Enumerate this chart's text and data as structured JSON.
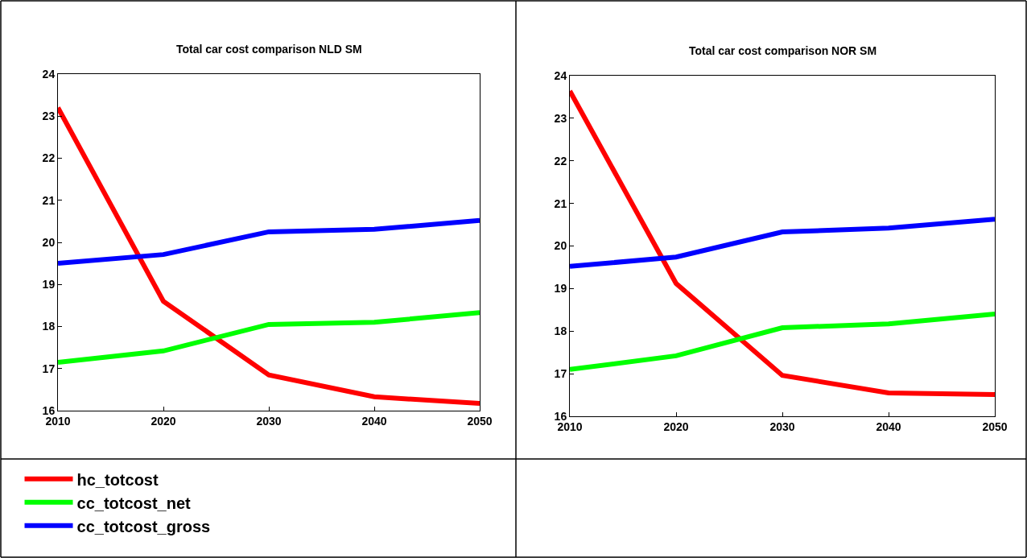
{
  "chart_data": [
    {
      "type": "line",
      "title": "Total car cost comparison NLD SM",
      "x": [
        2010,
        2020,
        2030,
        2040,
        2050
      ],
      "xlim": [
        2010,
        2050
      ],
      "xticks": [
        2010,
        2020,
        2030,
        2040,
        2050
      ],
      "ylim": [
        16,
        24
      ],
      "yticks": [
        16,
        17,
        18,
        19,
        20,
        21,
        22,
        23,
        24
      ],
      "legend": "bottom left",
      "marker": "none",
      "line_style": "solid",
      "series": [
        {
          "name": "hc_totcost",
          "color": "#ff0000",
          "values": [
            23.2,
            18.6,
            16.85,
            16.33,
            16.17
          ]
        },
        {
          "name": "cc_totcost_net",
          "color": "#00ff00",
          "values": [
            17.15,
            17.42,
            18.05,
            18.1,
            18.33
          ]
        },
        {
          "name": "cc_totcost_gross",
          "color": "#0000ff",
          "values": [
            19.5,
            19.71,
            20.25,
            20.31,
            20.52
          ]
        }
      ]
    },
    {
      "type": "line",
      "title": "Total car cost comparison NOR SM",
      "x": [
        2010,
        2020,
        2030,
        2040,
        2050
      ],
      "xlim": [
        2010,
        2050
      ],
      "xticks": [
        2010,
        2020,
        2030,
        2040,
        2050
      ],
      "ylim": [
        16,
        24
      ],
      "yticks": [
        16,
        17,
        18,
        19,
        20,
        21,
        22,
        23,
        24
      ],
      "legend": "bottom left",
      "marker": "none",
      "line_style": "solid",
      "series": [
        {
          "name": "hc_totcost",
          "color": "#ff0000",
          "values": [
            23.64,
            19.12,
            16.96,
            16.55,
            16.51
          ]
        },
        {
          "name": "cc_totcost_net",
          "color": "#00ff00",
          "values": [
            17.1,
            17.42,
            18.08,
            18.17,
            18.4
          ]
        },
        {
          "name": "cc_totcost_gross",
          "color": "#0000ff",
          "values": [
            19.52,
            19.74,
            20.33,
            20.42,
            20.63
          ]
        }
      ]
    }
  ]
}
